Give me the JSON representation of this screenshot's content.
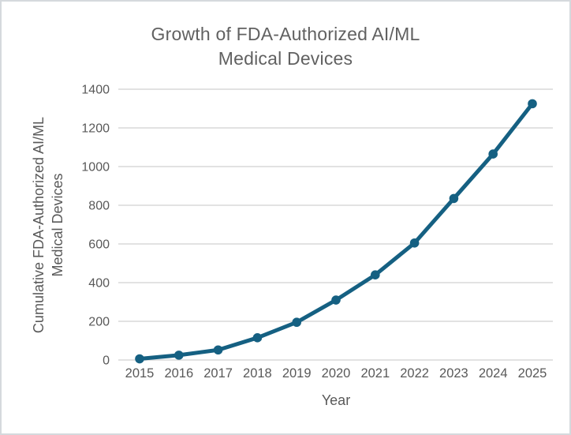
{
  "title": {
    "line1": "Growth of FDA-Authorized AI/ML",
    "line2": "Medical Devices"
  },
  "axes": {
    "y_title_line1": "Cumulative FDA-Authorized AI/ML",
    "y_title_line2": "Medical Devices",
    "x_title": "Year"
  },
  "colors": {
    "series": "#156082",
    "grid": "#d9d9d9",
    "tick_text": "#595959",
    "title_text": "#616161",
    "background": "#ffffff",
    "frame_border": "#d5d9dd"
  },
  "chart_data": {
    "type": "line",
    "title": "Growth of FDA-Authorized AI/ML Medical Devices",
    "xlabel": "Year",
    "ylabel": "Cumulative FDA-Authorized AI/ML Medical Devices",
    "categories": [
      "2015",
      "2016",
      "2017",
      "2018",
      "2019",
      "2020",
      "2021",
      "2022",
      "2023",
      "2024",
      "2025"
    ],
    "values": [
      6,
      25,
      52,
      115,
      195,
      310,
      440,
      605,
      835,
      1065,
      1325
    ],
    "ylim": [
      0,
      1400
    ],
    "yticks": [
      0,
      200,
      400,
      600,
      800,
      1000,
      1200,
      1400
    ],
    "grid": "horizontal-only",
    "legend": false,
    "marker": "circle"
  }
}
